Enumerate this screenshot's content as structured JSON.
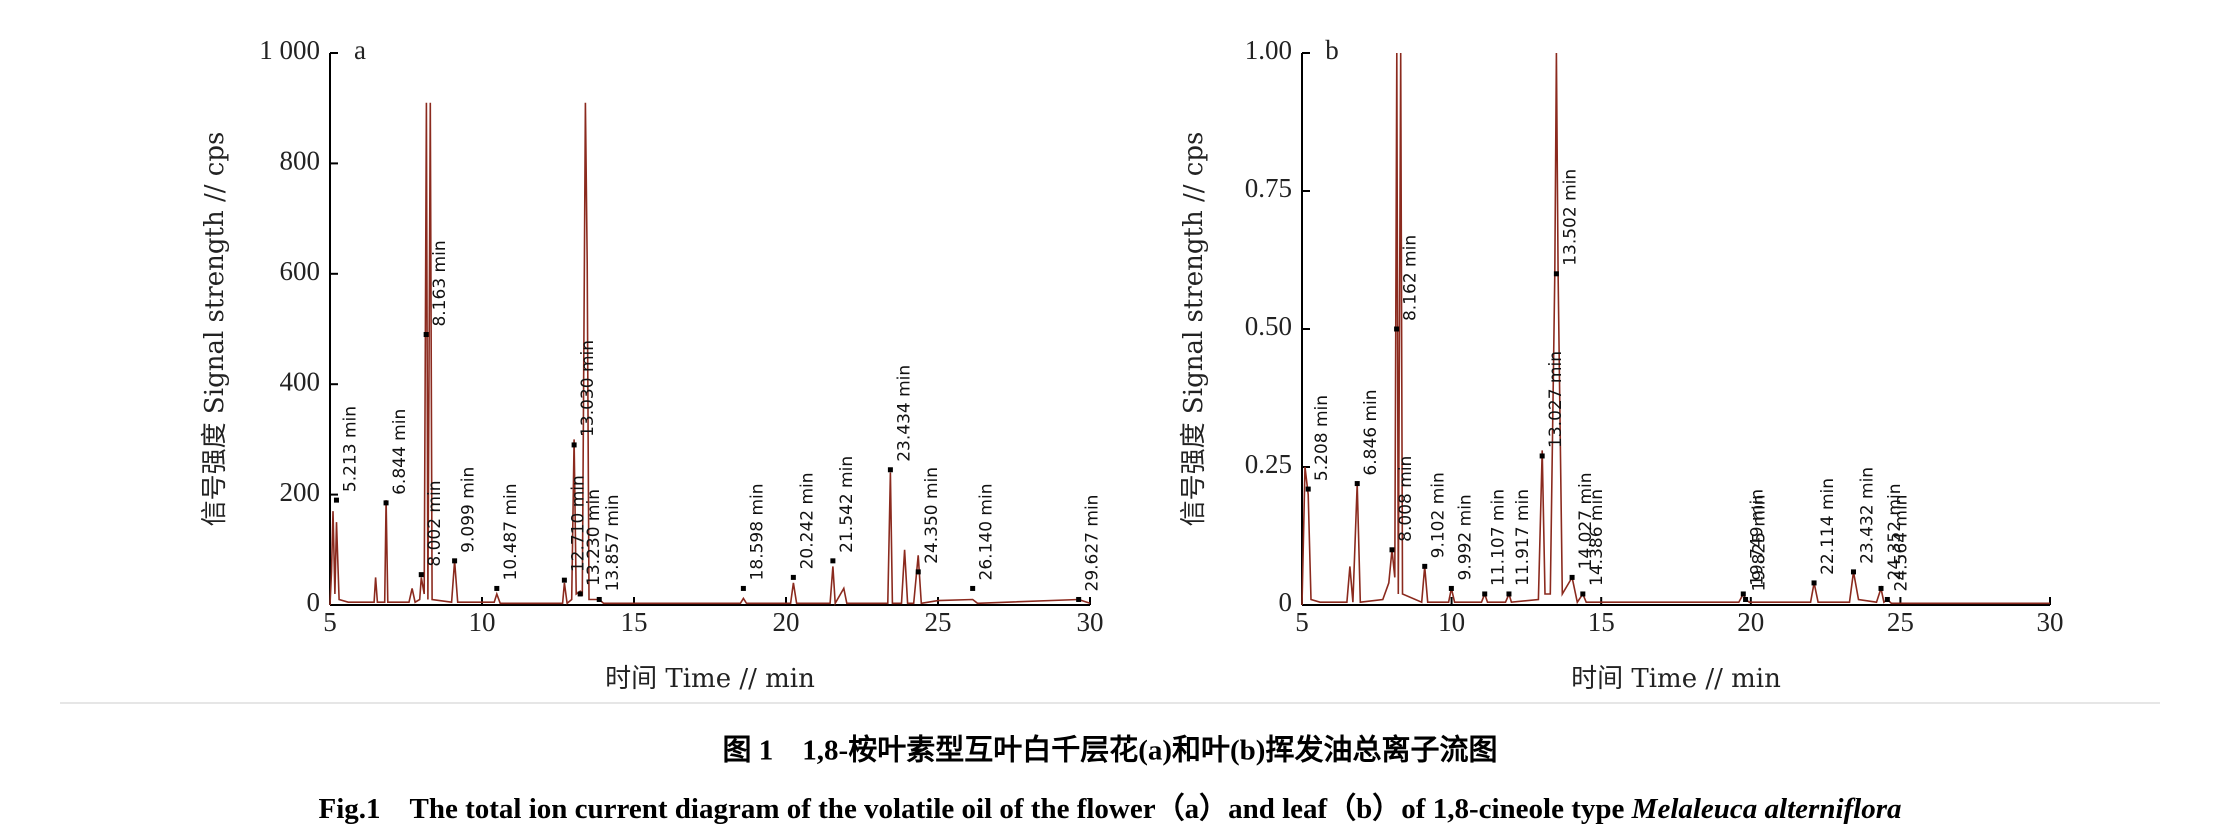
{
  "chart_data": [
    {
      "type": "line",
      "panel": "a",
      "xlabel": "时间 Time // min",
      "ylabel": "信号强度 Signal strength // cps",
      "xlim": [
        5,
        30
      ],
      "xticks": [
        5,
        10,
        15,
        20,
        25,
        30
      ],
      "ylim": [
        0,
        1000
      ],
      "yticks": [
        0,
        200,
        400,
        600,
        800,
        {
          "value": 1000,
          "label": "1 000"
        }
      ],
      "x": [
        5.0,
        5.05,
        5.1,
        5.16,
        5.213,
        5.3,
        5.6,
        6.45,
        6.5,
        6.56,
        6.8,
        6.844,
        6.9,
        7.6,
        7.7,
        7.8,
        7.95,
        8.002,
        8.1,
        8.17,
        8.22,
        8.3,
        8.36,
        9.0,
        9.099,
        9.2,
        10.4,
        10.487,
        10.6,
        12.65,
        12.71,
        12.8,
        12.95,
        13.03,
        13.1,
        13.23,
        13.3,
        13.4,
        13.46,
        13.52,
        13.857,
        14.0,
        18.5,
        18.598,
        18.7,
        20.15,
        20.242,
        20.35,
        21.45,
        21.542,
        21.62,
        21.9,
        22.0,
        23.35,
        23.434,
        23.5,
        23.8,
        23.9,
        24.0,
        24.2,
        24.35,
        24.45,
        25.0,
        26.14,
        26.3,
        29.627,
        30.0
      ],
      "series": [
        {
          "color": "#8b2a1e",
          "values": [
            0,
            60,
            170,
            20,
            150,
            10,
            5,
            5,
            50,
            5,
            5,
            190,
            5,
            5,
            30,
            5,
            10,
            50,
            20,
            910,
            10,
            910,
            10,
            5,
            80,
            5,
            5,
            20,
            3,
            3,
            40,
            3,
            10,
            300,
            20,
            25,
            20,
            910,
            620,
            10,
            10,
            3,
            3,
            12,
            3,
            3,
            40,
            3,
            3,
            70,
            3,
            30,
            3,
            3,
            240,
            3,
            3,
            100,
            3,
            3,
            90,
            3,
            8,
            10,
            3,
            10,
            3
          ]
        }
      ],
      "annotations": [
        {
          "text": "5.213 min",
          "x": 5.213,
          "y": 190
        },
        {
          "text": "6.844 min",
          "x": 6.844,
          "y": 185
        },
        {
          "text": "8.002 min",
          "x": 8.002,
          "y": 55
        },
        {
          "text": "8.163 min",
          "x": 8.163,
          "y": 490
        },
        {
          "text": "9.099 min",
          "x": 9.099,
          "y": 80
        },
        {
          "text": "10.487 min",
          "x": 10.487,
          "y": 30
        },
        {
          "text": "12.710 min",
          "x": 12.71,
          "y": 45
        },
        {
          "text": "13.030 min",
          "x": 13.03,
          "y": 290
        },
        {
          "text": "13.230 min",
          "x": 13.23,
          "y": 20
        },
        {
          "text": "13.857 min",
          "x": 13.857,
          "y": 10
        },
        {
          "text": "18.598 min",
          "x": 18.598,
          "y": 30
        },
        {
          "text": "20.242 min",
          "x": 20.242,
          "y": 50
        },
        {
          "text": "21.542 min",
          "x": 21.542,
          "y": 80
        },
        {
          "text": "23.434 min",
          "x": 23.434,
          "y": 245
        },
        {
          "text": "24.350 min",
          "x": 24.35,
          "y": 60
        },
        {
          "text": "26.140 min",
          "x": 26.14,
          "y": 30
        },
        {
          "text": "29.627 min",
          "x": 29.627,
          "y": 10
        }
      ]
    },
    {
      "type": "line",
      "panel": "b",
      "xlabel": "时间 Time // min",
      "ylabel": "信号强度 Signal strength // cps",
      "xlim": [
        5,
        30
      ],
      "xticks": [
        5,
        10,
        15,
        20,
        25,
        30
      ],
      "ylim": [
        0,
        1
      ],
      "yticks": [
        0,
        0.25,
        {
          "value": 0.5,
          "label": "0.50"
        },
        0.75,
        {
          "value": 1,
          "label": "1.00"
        }
      ],
      "x": [
        5.0,
        5.1,
        5.208,
        5.3,
        5.6,
        6.5,
        6.6,
        6.7,
        6.846,
        6.95,
        7.7,
        7.9,
        8.008,
        8.1,
        8.17,
        8.22,
        8.3,
        8.36,
        9.0,
        9.102,
        9.2,
        9.9,
        9.992,
        10.1,
        11.0,
        11.107,
        11.2,
        11.8,
        11.917,
        12.0,
        12.9,
        13.027,
        13.12,
        13.3,
        13.45,
        13.502,
        13.56,
        13.7,
        14.027,
        14.2,
        14.386,
        14.5,
        19.6,
        19.749,
        19.825,
        19.95,
        22.0,
        22.114,
        22.25,
        23.3,
        23.432,
        23.6,
        24.2,
        24.352,
        24.45,
        24.564,
        24.7,
        30.0
      ],
      "series": [
        {
          "color": "#8b2a1e",
          "values": [
            0,
            0.25,
            0.2,
            0.01,
            0.005,
            0.005,
            0.07,
            0.005,
            0.22,
            0.005,
            0.01,
            0.04,
            0.1,
            0.05,
            1.0,
            0.02,
            1.0,
            0.02,
            0.005,
            0.07,
            0.005,
            0.005,
            0.03,
            0.005,
            0.005,
            0.02,
            0.005,
            0.005,
            0.02,
            0.005,
            0.01,
            0.28,
            0.02,
            0.02,
            0.6,
            1.0,
            0.6,
            0.02,
            0.05,
            0.005,
            0.02,
            0.005,
            0.005,
            0.02,
            0.01,
            0.005,
            0.005,
            0.04,
            0.005,
            0.005,
            0.06,
            0.01,
            0.005,
            0.03,
            0.005,
            0.01,
            0.003,
            0.003
          ]
        }
      ],
      "annotations": [
        {
          "text": "5.208 min",
          "x": 5.208,
          "y": 0.21
        },
        {
          "text": "6.846 min",
          "x": 6.846,
          "y": 0.22
        },
        {
          "text": "8.008 min",
          "x": 8.008,
          "y": 0.1
        },
        {
          "text": "8.162 min",
          "x": 8.162,
          "y": 0.5
        },
        {
          "text": "9.102 min",
          "x": 9.102,
          "y": 0.07
        },
        {
          "text": "9.992 min",
          "x": 9.992,
          "y": 0.03
        },
        {
          "text": "11.107 min",
          "x": 11.107,
          "y": 0.02
        },
        {
          "text": "11.917 min",
          "x": 11.917,
          "y": 0.02
        },
        {
          "text": "13.027 min",
          "x": 13.027,
          "y": 0.27
        },
        {
          "text": "13.502 min",
          "x": 13.502,
          "y": 0.6
        },
        {
          "text": "14.027 min",
          "x": 14.027,
          "y": 0.05
        },
        {
          "text": "14.386 min",
          "x": 14.386,
          "y": 0.02
        },
        {
          "text": "19.749 min",
          "x": 19.749,
          "y": 0.02
        },
        {
          "text": "19.825 min",
          "x": 19.825,
          "y": 0.01
        },
        {
          "text": "22.114 min",
          "x": 22.114,
          "y": 0.04
        },
        {
          "text": "23.432 min",
          "x": 23.432,
          "y": 0.06
        },
        {
          "text": "24.352 min",
          "x": 24.352,
          "y": 0.03
        },
        {
          "text": "24.564 min",
          "x": 24.564,
          "y": 0.01
        }
      ]
    }
  ],
  "caption": {
    "zh": "图 1　1,8-桉叶素型互叶白千层花(a)和叶(b)挥发油总离子流图",
    "en": "Fig.1　The total ion current diagram of the volatile oil of the flower（a）and leaf（b）of 1,8-cineole type ",
    "en_species": "Melaleuca alterniflora"
  }
}
